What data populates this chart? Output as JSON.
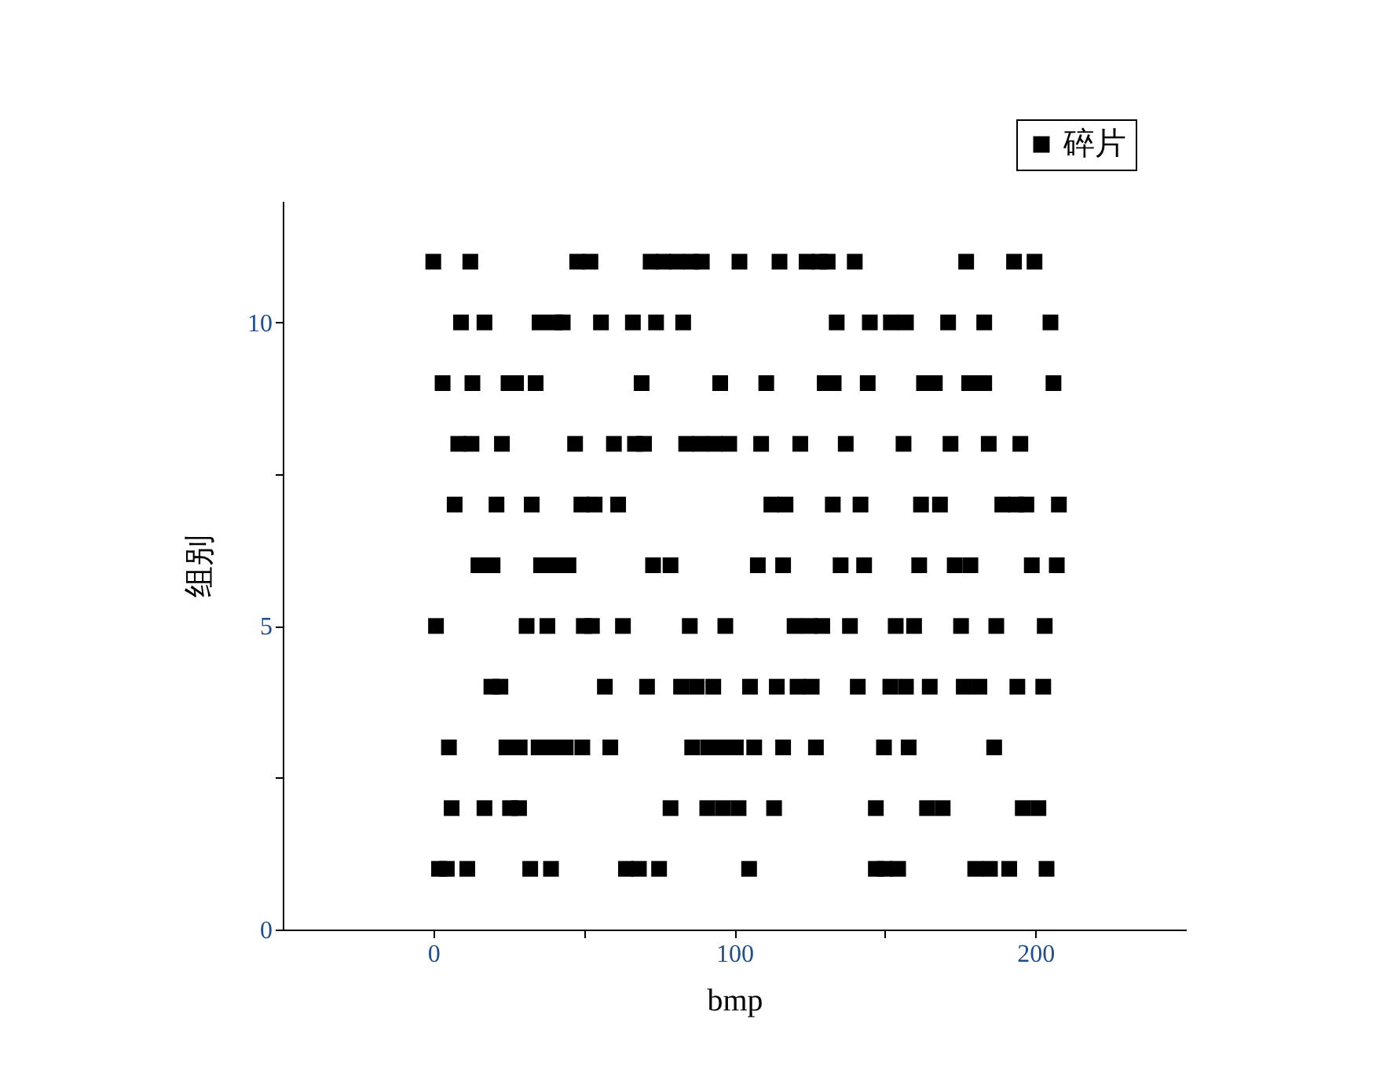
{
  "chart_data": {
    "type": "scatter",
    "xlabel": "bmp",
    "ylabel": "组别",
    "legend": "top right",
    "marker": "square",
    "grid": false,
    "xlim": [
      -50,
      250
    ],
    "xticks": [
      0,
      {
        "value": 50,
        "label": null
      },
      100,
      {
        "value": 150,
        "label": null
      },
      200
    ],
    "ylim": [
      0,
      12
    ],
    "yticks": [
      0,
      {
        "value": 2.5,
        "label": null
      },
      5,
      {
        "value": 7.5,
        "label": null
      },
      10
    ],
    "series": [
      {
        "name": "碎片",
        "color": "#000000",
        "x": [
          0,
          12.3,
          47.8,
          52.2,
          72.2,
          76.5,
          80.9,
          85.7,
          89.2,
          101.7,
          115,
          124,
          128.3,
          131,
          140,
          177,
          192.9,
          199.7,
          9.2,
          17,
          35.3,
          40.5,
          43,
          55.7,
          66.3,
          74,
          83,
          134,
          145,
          152,
          157,
          171,
          183,
          205,
          3.1,
          13,
          25,
          27.5,
          34,
          69.2,
          95.3,
          110.6,
          130,
          133,
          144.3,
          163,
          166.6,
          178,
          183,
          206,
          8.3,
          12.7,
          22.8,
          47.1,
          60,
          67,
          70,
          84,
          88.7,
          93.6,
          98.3,
          108.9,
          121.9,
          137,
          156.2,
          171.8,
          184.5,
          195,
          7.1,
          21,
          32.7,
          49.2,
          53.6,
          61.4,
          112.3,
          117,
          132.7,
          141.9,
          162,
          168.3,
          189,
          193.6,
          197,
          207.8,
          15,
          19.7,
          35.8,
          40.5,
          44.9,
          73,
          78.8,
          107.8,
          116.2,
          135.3,
          143.1,
          161.4,
          173.2,
          178.4,
          198.8,
          207.1,
          0.9,
          31,
          37.9,
          50,
          52.7,
          63,
          85.2,
          97,
          120,
          125,
          129.2,
          138.4,
          153.6,
          159.7,
          175.3,
          187,
          203.1,
          19.3,
          22.3,
          57,
          71,
          82.3,
          87.5,
          93,
          105.2,
          114.1,
          121,
          125.7,
          141,
          151.8,
          157,
          164.9,
          176.2,
          181.4,
          194,
          202.6,
          5.2,
          24.3,
          28.7,
          35,
          39.5,
          44,
          49.5,
          58.8,
          86,
          91.3,
          95.8,
          100.5,
          106.6,
          116.2,
          127.1,
          149.7,
          157.9,
          186.3,
          6.1,
          17,
          25.5,
          28.5,
          78.8,
          91,
          96.2,
          101.4,
          113.2,
          147,
          164,
          169.2,
          195.8,
          201,
          1.9,
          4.5,
          11.3,
          32.2,
          39.1,
          64,
          68.3,
          75,
          104.9,
          147,
          150,
          154.4,
          180,
          184.9,
          191.3,
          203.7
        ],
        "values": [
          11,
          11,
          11,
          11,
          11,
          11,
          11,
          11,
          11,
          11,
          11,
          11,
          11,
          11,
          11,
          11,
          11,
          11,
          10,
          10,
          10,
          10,
          10,
          10,
          10,
          10,
          10,
          10,
          10,
          10,
          10,
          10,
          10,
          10,
          9,
          9,
          9,
          9,
          9,
          9,
          9,
          9,
          9,
          9,
          9,
          9,
          9,
          9,
          9,
          9,
          8,
          8,
          8,
          8,
          8,
          8,
          8,
          8,
          8,
          8,
          8,
          8,
          8,
          8,
          8,
          8,
          8,
          8,
          7,
          7,
          7,
          7,
          7,
          7,
          7,
          7,
          7,
          7,
          7,
          7,
          7,
          7,
          7,
          7,
          6,
          6,
          6,
          6,
          6,
          6,
          6,
          6,
          6,
          6,
          6,
          6,
          6,
          6,
          6,
          6,
          5,
          5,
          5,
          5,
          5,
          5,
          5,
          5,
          5,
          5,
          5,
          5,
          5,
          5,
          5,
          5,
          5,
          4,
          4,
          4,
          4,
          4,
          4,
          4,
          4,
          4,
          4,
          4,
          4,
          4,
          4,
          4,
          4,
          4,
          4,
          4,
          3,
          3,
          3,
          3,
          3,
          3,
          3,
          3,
          3,
          3,
          3,
          3,
          3,
          3,
          3,
          3,
          3,
          3,
          2,
          2,
          2,
          2,
          2,
          2,
          2,
          2,
          2,
          2,
          2,
          2,
          2,
          2,
          1,
          1,
          1,
          1,
          1,
          1,
          1,
          1,
          1,
          1,
          1,
          1,
          1,
          1,
          1,
          1
        ]
      }
    ]
  }
}
